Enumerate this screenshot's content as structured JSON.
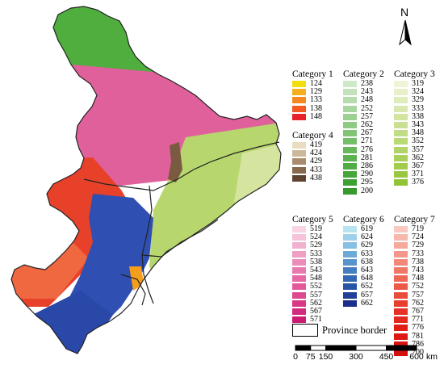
{
  "map": {
    "region_colors": {
      "far_north": "#4fae3d",
      "north_central": "#e0609c",
      "pink_light": "#ec8fbf",
      "west": "#e8412a",
      "west_light": "#f06840",
      "center_blue": "#2f4fb2",
      "south_blue": "#2a48a8",
      "east_green": "#b7d66d",
      "east_light": "#d5e5a0",
      "brown": "#7a5a40",
      "orange": "#f59e1c"
    }
  },
  "north_arrow": {
    "label": "N"
  },
  "legend": {
    "categories": [
      {
        "title": "Category 1",
        "items": [
          {
            "label": "124",
            "color": "#f2de0e"
          },
          {
            "label": "129",
            "color": "#f4b01c"
          },
          {
            "label": "133",
            "color": "#f68a22"
          },
          {
            "label": "138",
            "color": "#f25a22"
          },
          {
            "label": "148",
            "color": "#e8222a"
          }
        ]
      },
      {
        "title": "Category 2",
        "items": [
          {
            "label": "238",
            "color": "#cfe8c9"
          },
          {
            "label": "243",
            "color": "#c3e2bb"
          },
          {
            "label": "248",
            "color": "#b6dcae"
          },
          {
            "label": "252",
            "color": "#a9d6a0"
          },
          {
            "label": "257",
            "color": "#9cd092"
          },
          {
            "label": "262",
            "color": "#8fca84"
          },
          {
            "label": "267",
            "color": "#82c476"
          },
          {
            "label": "271",
            "color": "#75be68"
          },
          {
            "label": "276",
            "color": "#68b85b"
          },
          {
            "label": "281",
            "color": "#5cb24f"
          },
          {
            "label": "286",
            "color": "#50ac44"
          },
          {
            "label": "290",
            "color": "#46a63a"
          },
          {
            "label": "295",
            "color": "#3da032"
          },
          {
            "label": "200",
            "color": "#35992b"
          }
        ]
      },
      {
        "title": "Category 3",
        "items": [
          {
            "label": "319",
            "color": "#eef4d6"
          },
          {
            "label": "324",
            "color": "#e7f0c9"
          },
          {
            "label": "329",
            "color": "#e0ecbc"
          },
          {
            "label": "333",
            "color": "#d9e8ae"
          },
          {
            "label": "338",
            "color": "#d1e4a0"
          },
          {
            "label": "343",
            "color": "#c9e092"
          },
          {
            "label": "348",
            "color": "#c1dc84"
          },
          {
            "label": "352",
            "color": "#b9d876"
          },
          {
            "label": "357",
            "color": "#b1d468"
          },
          {
            "label": "362",
            "color": "#a9d05a"
          },
          {
            "label": "367",
            "color": "#a1cc4c"
          },
          {
            "label": "371",
            "color": "#99c840"
          },
          {
            "label": "376",
            "color": "#91c434"
          }
        ]
      },
      {
        "title": "Category 4",
        "items": [
          {
            "label": "419",
            "color": "#e9dcc0"
          },
          {
            "label": "424",
            "color": "#cdb79a"
          },
          {
            "label": "429",
            "color": "#a98c6e"
          },
          {
            "label": "433",
            "color": "#86684d"
          },
          {
            "label": "438",
            "color": "#5e4430"
          }
        ]
      },
      {
        "title": "Category 5",
        "items": [
          {
            "label": "519",
            "color": "#f8d4e4"
          },
          {
            "label": "524",
            "color": "#f5c2da"
          },
          {
            "label": "529",
            "color": "#f2b0cf"
          },
          {
            "label": "533",
            "color": "#ef9ec4"
          },
          {
            "label": "538",
            "color": "#ec8cba"
          },
          {
            "label": "543",
            "color": "#e97aaf"
          },
          {
            "label": "548",
            "color": "#e668a4"
          },
          {
            "label": "552",
            "color": "#e2589a"
          },
          {
            "label": "557",
            "color": "#dd4890"
          },
          {
            "label": "562",
            "color": "#d83886"
          },
          {
            "label": "567",
            "color": "#d22a7c"
          },
          {
            "label": "571",
            "color": "#cc1c72"
          }
        ]
      },
      {
        "title": "Category 6",
        "items": [
          {
            "label": "619",
            "color": "#b8e4f2"
          },
          {
            "label": "624",
            "color": "#9fd2ea"
          },
          {
            "label": "629",
            "color": "#86c0e2"
          },
          {
            "label": "633",
            "color": "#6eaad8"
          },
          {
            "label": "638",
            "color": "#5894cc"
          },
          {
            "label": "643",
            "color": "#447ec0"
          },
          {
            "label": "648",
            "color": "#3468b4"
          },
          {
            "label": "652",
            "color": "#2854a8"
          },
          {
            "label": "657",
            "color": "#20409a"
          },
          {
            "label": "662",
            "color": "#1a2e8a"
          }
        ]
      },
      {
        "title": "Category 7",
        "items": [
          {
            "label": "719",
            "color": "#f9c8c0"
          },
          {
            "label": "724",
            "color": "#f7b8ae"
          },
          {
            "label": "729",
            "color": "#f5a89c"
          },
          {
            "label": "733",
            "color": "#f3988a"
          },
          {
            "label": "738",
            "color": "#f18878"
          },
          {
            "label": "743",
            "color": "#ef7866"
          },
          {
            "label": "748",
            "color": "#ed6856"
          },
          {
            "label": "752",
            "color": "#eb5a48"
          },
          {
            "label": "757",
            "color": "#e94c3a"
          },
          {
            "label": "762",
            "color": "#e73e2e"
          },
          {
            "label": "767",
            "color": "#e53224"
          },
          {
            "label": "771",
            "color": "#e3281c"
          },
          {
            "label": "776",
            "color": "#e01e16"
          },
          {
            "label": "781",
            "color": "#dc1812"
          },
          {
            "label": "786",
            "color": "#d81410"
          },
          {
            "label": "700",
            "color": "#d2100e"
          }
        ]
      }
    ],
    "border_label": "Province border"
  },
  "scale_bar": {
    "ticks": [
      "0",
      "75",
      "150",
      "300",
      "450",
      "600"
    ],
    "tick_values": [
      0,
      75,
      150,
      300,
      450,
      600
    ],
    "unit": "km"
  }
}
